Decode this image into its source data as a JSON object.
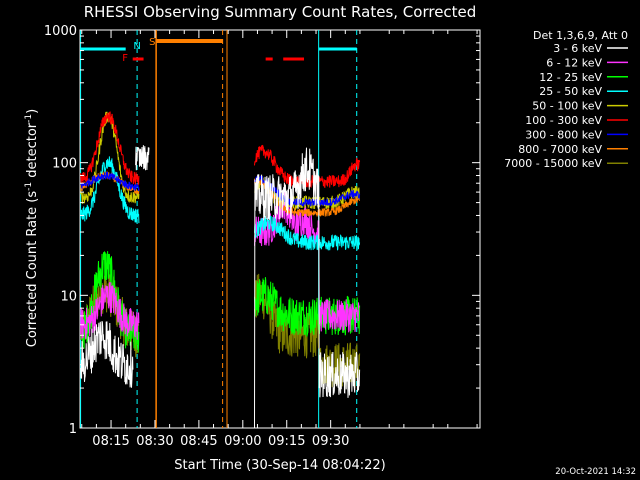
{
  "chart_data": {
    "type": "line",
    "title": "RHESSI Observing Summary Count Rates, Corrected",
    "xlabel": "Start Time (30-Sep-14 08:04:22)",
    "ylabel": "Corrected Count Rate (s⁻¹ detector⁻¹)",
    "ylabel_main": "Corrected Count Rate (s",
    "ylabel_sup1": "-1",
    "ylabel_mid": " detector",
    "ylabel_sup2": "-1",
    "ylabel_end": ")",
    "y_scale": "log",
    "ylim": [
      1,
      1000
    ],
    "xlim_min": [
      484.4,
      621.0
    ],
    "x_ticks": [
      {
        "label": "08:15",
        "min": 495
      },
      {
        "label": "08:30",
        "min": 510
      },
      {
        "label": "08:45",
        "min": 525
      },
      {
        "label": "09:00",
        "min": 540
      },
      {
        "label": "09:15",
        "min": 555
      },
      {
        "label": "09:30",
        "min": 570
      }
    ],
    "y_ticks": [
      {
        "label": "1",
        "value": 1
      },
      {
        "label": "10",
        "value": 10
      },
      {
        "label": "100",
        "value": 100
      },
      {
        "label": "1000",
        "value": 1000
      }
    ],
    "legend_header": "Det 1,3,6,9, Att 0",
    "legend_placement": "right",
    "series": [
      {
        "name": "3 - 6 keV",
        "color": "#ffffff"
      },
      {
        "name": "6 - 12 keV",
        "color": "#ff33ff"
      },
      {
        "name": "12 - 25 keV",
        "color": "#00ff00"
      },
      {
        "name": "25 - 50 keV",
        "color": "#00ffff"
      },
      {
        "name": "50 - 100 keV",
        "color": "#cccc00"
      },
      {
        "name": "100 - 300 keV",
        "color": "#ff0000"
      },
      {
        "name": "300 - 800 keV",
        "color": "#0000ff"
      },
      {
        "name": "800 - 7000 keV",
        "color": "#ff8000"
      },
      {
        "name": "7000 - 15000 keV",
        "color": "#808000"
      }
    ],
    "markers": [
      {
        "label": "F",
        "color": "#ff0000",
        "min": 499.8
      },
      {
        "label": "N",
        "color": "#00ffff",
        "min": 503.9
      },
      {
        "label": "S",
        "color": "#ff8000",
        "min": 509.1
      }
    ],
    "footer_timestamp": "20-Oct-2021 14:32"
  }
}
